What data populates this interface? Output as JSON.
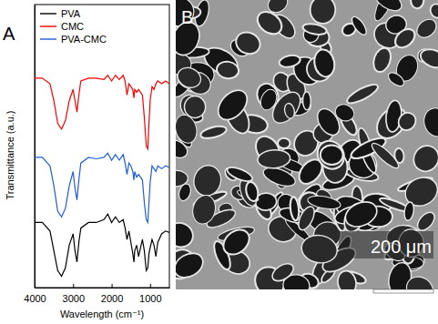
{
  "chart_data": {
    "type": "line",
    "x_label": "Wavelength (cm⁻¹)",
    "y_label": "Transmittance (a.u.)",
    "x": [
      4000,
      3800,
      3600,
      3500,
      3400,
      3300,
      3200,
      3100,
      3000,
      2950,
      2900,
      2850,
      2800,
      2600,
      2400,
      2200,
      2100,
      2000,
      1900,
      1800,
      1700,
      1650,
      1600,
      1550,
      1500,
      1450,
      1420,
      1400,
      1350,
      1300,
      1250,
      1200,
      1150,
      1100,
      1060,
      1030,
      1000,
      950,
      900,
      850,
      800,
      700,
      600,
      500
    ],
    "series": [
      {
        "name": "PVA",
        "color": "#000000",
        "values": [
          2.3,
          2.3,
          2.0,
          1.3,
          0.6,
          0.4,
          0.7,
          1.5,
          1.9,
          1.3,
          0.9,
          1.6,
          2.1,
          2.3,
          2.3,
          2.4,
          2.6,
          2.3,
          2.5,
          2.3,
          2.4,
          2.1,
          1.7,
          2.0,
          1.6,
          1.2,
          0.9,
          1.3,
          1.5,
          1.1,
          1.4,
          1.7,
          1.3,
          0.6,
          0.7,
          1.2,
          1.4,
          1.7,
          1.5,
          1.1,
          1.6,
          1.9,
          2.0,
          1.95
        ]
      },
      {
        "name": "CMC",
        "color": "#ff0000",
        "values": [
          7.4,
          7.4,
          7.2,
          6.6,
          5.8,
          5.6,
          5.9,
          6.6,
          7.0,
          6.6,
          6.2,
          6.8,
          7.3,
          7.4,
          7.4,
          7.35,
          7.5,
          7.3,
          7.5,
          7.35,
          7.5,
          7.3,
          6.8,
          7.2,
          7.1,
          7.0,
          6.7,
          7.0,
          6.9,
          7.0,
          6.9,
          6.8,
          6.0,
          5.0,
          4.9,
          5.8,
          6.6,
          7.1,
          7.0,
          7.2,
          7.3,
          7.2,
          7.3,
          7.2
        ]
      },
      {
        "name": "PVA-CMC",
        "color": "#1f5fd6",
        "values": [
          4.6,
          4.6,
          4.3,
          3.6,
          2.7,
          2.5,
          2.8,
          3.6,
          4.1,
          3.5,
          3.1,
          3.8,
          4.4,
          4.6,
          4.55,
          4.6,
          4.75,
          4.5,
          4.7,
          4.5,
          4.7,
          4.4,
          4.0,
          4.4,
          4.3,
          4.1,
          3.8,
          4.1,
          3.9,
          4.0,
          3.9,
          3.8,
          3.0,
          2.4,
          2.3,
          3.0,
          3.7,
          4.3,
          4.2,
          4.1,
          4.3,
          4.2,
          4.3,
          4.25
        ]
      }
    ],
    "xlim": [
      4000,
      500
    ],
    "xticks": [
      4000,
      3000,
      2000,
      1000
    ],
    "ylim": [
      0,
      10
    ],
    "tick_labels": "x",
    "legend": "upper left",
    "grid": false
  },
  "figure": {
    "panel_labels": [
      "A",
      "B"
    ],
    "scale_bar_label": "200 μm"
  }
}
